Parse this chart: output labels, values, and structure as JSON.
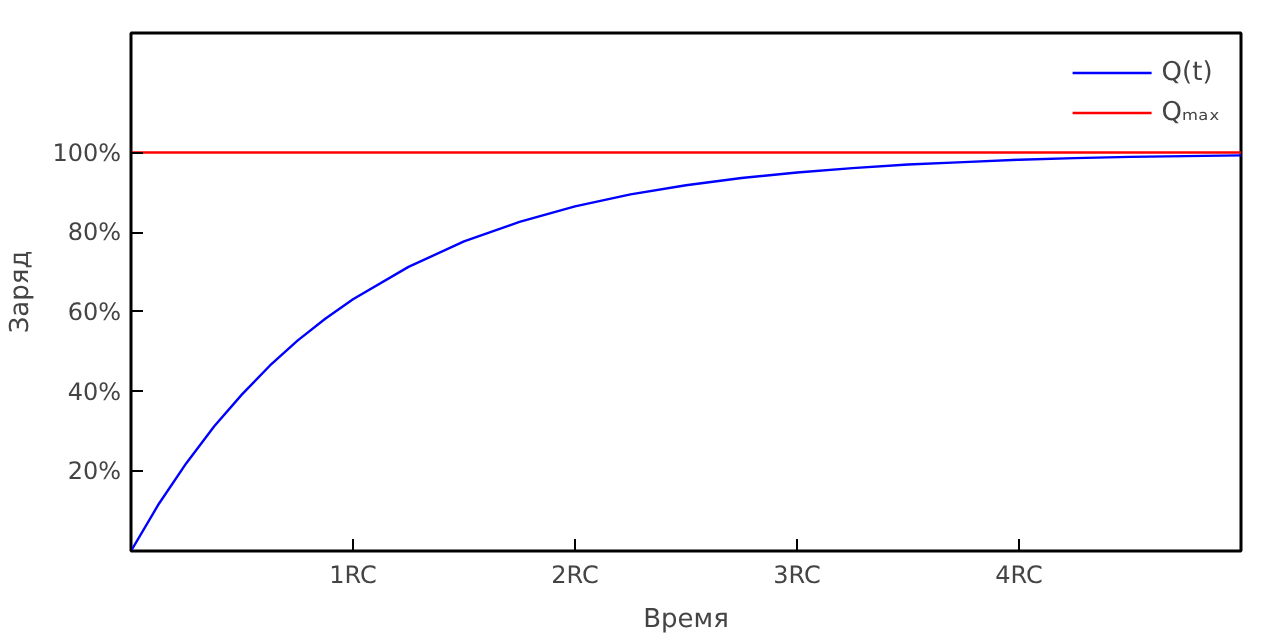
{
  "chart_data": {
    "type": "line",
    "xlabel": "Время",
    "ylabel": "Заряд",
    "xlim": [
      0,
      5
    ],
    "ylim": [
      0,
      130
    ],
    "xticks": [
      {
        "value": 1,
        "label": "1RC"
      },
      {
        "value": 2,
        "label": "2RC"
      },
      {
        "value": 3,
        "label": "3RC"
      },
      {
        "value": 4,
        "label": "4RC"
      }
    ],
    "yticks": [
      {
        "value": 20,
        "label": "20%"
      },
      {
        "value": 40,
        "label": "40%"
      },
      {
        "value": 60,
        "label": "60%"
      },
      {
        "value": 80,
        "label": "80%"
      },
      {
        "value": 100,
        "label": "100%"
      }
    ],
    "series": [
      {
        "name": "Q(t)",
        "color": "#0000ff",
        "x": [
          0,
          0.125,
          0.25,
          0.375,
          0.5,
          0.625,
          0.75,
          0.875,
          1,
          1.25,
          1.5,
          1.75,
          2,
          2.25,
          2.5,
          2.75,
          3,
          3.25,
          3.5,
          3.75,
          4,
          4.25,
          4.5,
          4.75,
          5
        ],
        "values": [
          0,
          11.8,
          22.1,
          31.3,
          39.3,
          46.5,
          52.8,
          58.3,
          63.2,
          71.3,
          77.7,
          82.6,
          86.5,
          89.5,
          91.8,
          93.6,
          95.0,
          96.1,
          97.0,
          97.6,
          98.2,
          98.6,
          98.9,
          99.1,
          99.3
        ]
      },
      {
        "name": "Qₘₐₓ",
        "color": "#ff0000",
        "x": [
          0,
          5
        ],
        "values": [
          100,
          100
        ]
      }
    ],
    "grid": false,
    "legend": "top right",
    "marker": "none",
    "line_style": "solid"
  }
}
